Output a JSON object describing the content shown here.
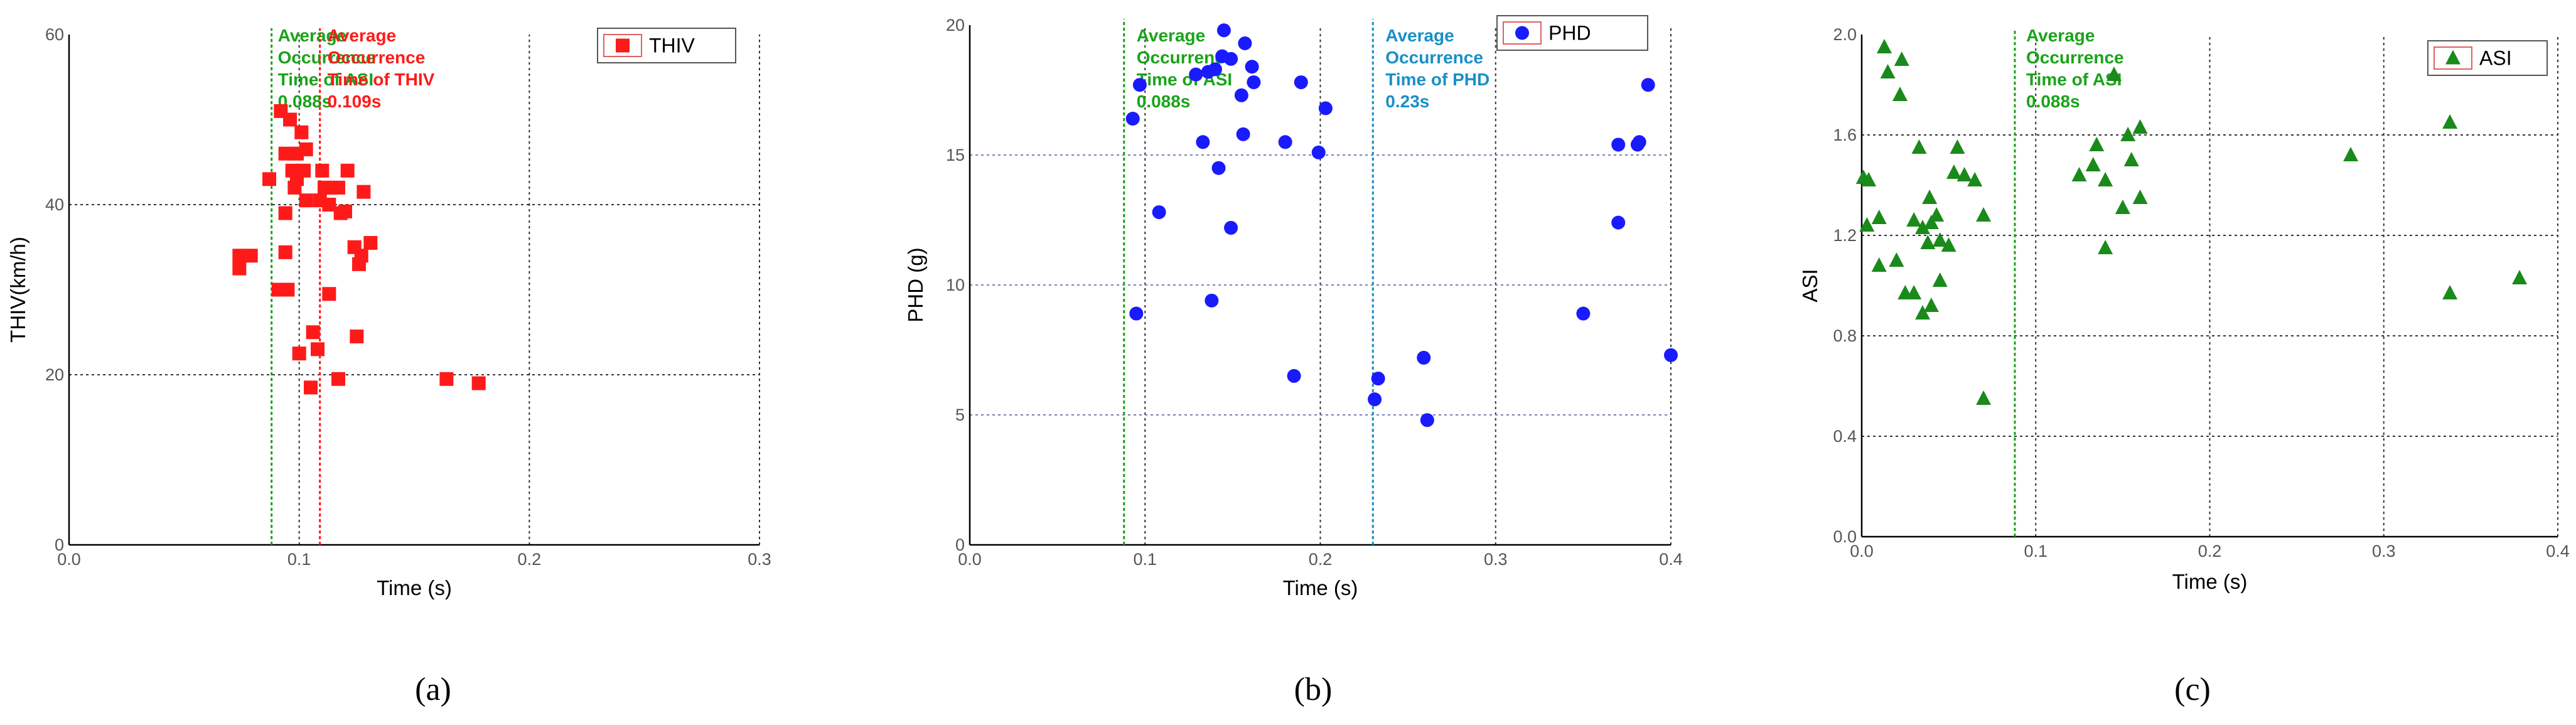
{
  "panel_labels": [
    "(a)",
    "(b)",
    "(c)"
  ],
  "chart_data": [
    {
      "type": "scatter",
      "xlabel": "Time (s)",
      "ylabel": "THIV(km/h)",
      "xlim": [
        0.0,
        0.3
      ],
      "ylim": [
        0,
        60
      ],
      "xticks": [
        "0.0",
        "0.1",
        "0.2",
        "0.3"
      ],
      "yticks": [
        "0",
        "20",
        "40",
        "60"
      ],
      "grid": "dotted at 0.1, 0.2 and 20, 40",
      "legend_position": "top-right",
      "series": [
        {
          "name": "THIV",
          "color": "#ff1a1a",
          "marker": "square",
          "points": [
            [
              0.092,
              51
            ],
            [
              0.096,
              50
            ],
            [
              0.094,
              46
            ],
            [
              0.099,
              46
            ],
            [
              0.103,
              46.5
            ],
            [
              0.101,
              48.5
            ],
            [
              0.097,
              44
            ],
            [
              0.102,
              44
            ],
            [
              0.099,
              43
            ],
            [
              0.087,
              43
            ],
            [
              0.098,
              42
            ],
            [
              0.11,
              44
            ],
            [
              0.111,
              42
            ],
            [
              0.114,
              42
            ],
            [
              0.117,
              42
            ],
            [
              0.121,
              44
            ],
            [
              0.128,
              41.5
            ],
            [
              0.109,
              40.5
            ],
            [
              0.103,
              40.5
            ],
            [
              0.113,
              40
            ],
            [
              0.118,
              39
            ],
            [
              0.12,
              39.2
            ],
            [
              0.094,
              39
            ],
            [
              0.124,
              35
            ],
            [
              0.131,
              35.5
            ],
            [
              0.127,
              34
            ],
            [
              0.094,
              34.4
            ],
            [
              0.126,
              33
            ],
            [
              0.074,
              34
            ],
            [
              0.079,
              34
            ],
            [
              0.074,
              32.5
            ],
            [
              0.091,
              30
            ],
            [
              0.095,
              30
            ],
            [
              0.113,
              29.5
            ],
            [
              0.106,
              25
            ],
            [
              0.125,
              24.5
            ],
            [
              0.108,
              23
            ],
            [
              0.1,
              22.5
            ],
            [
              0.117,
              19.5
            ],
            [
              0.105,
              18.5
            ],
            [
              0.164,
              19.5
            ],
            [
              0.178,
              19
            ]
          ]
        }
      ],
      "annotations": [
        {
          "x": 0.088,
          "lines": [
            "Average",
            "Occurrence",
            "Time of ASI",
            "0.088s"
          ],
          "color": "#1aa31a"
        },
        {
          "x": 0.109,
          "lines": [
            "Average",
            "Occurrence",
            "Time of THIV",
            "0.109s"
          ],
          "color": "#ff1a1a"
        }
      ]
    },
    {
      "type": "scatter",
      "xlabel": "Time (s)",
      "ylabel": "PHD (g)",
      "xlim": [
        0.0,
        0.4
      ],
      "ylim": [
        0,
        20
      ],
      "xticks": [
        "0.0",
        "0.1",
        "0.2",
        "0.3",
        "0.4"
      ],
      "yticks": [
        "0",
        "5",
        "10",
        "15",
        "20"
      ],
      "grid": "dotted at 0.1, 0.2, 0.3 and 5, 10, 15",
      "legend_position": "top-right",
      "series": [
        {
          "name": "PHD",
          "color": "#1a1aff",
          "marker": "circle",
          "points": [
            [
              0.145,
              19.8
            ],
            [
              0.157,
              19.3
            ],
            [
              0.129,
              18.1
            ],
            [
              0.136,
              18.2
            ],
            [
              0.14,
              18.3
            ],
            [
              0.144,
              18.8
            ],
            [
              0.149,
              18.7
            ],
            [
              0.161,
              18.4
            ],
            [
              0.189,
              17.8
            ],
            [
              0.162,
              17.8
            ],
            [
              0.097,
              17.7
            ],
            [
              0.155,
              17.3
            ],
            [
              0.203,
              16.8
            ],
            [
              0.093,
              16.4
            ],
            [
              0.156,
              15.8
            ],
            [
              0.133,
              15.5
            ],
            [
              0.18,
              15.5
            ],
            [
              0.199,
              15.1
            ],
            [
              0.142,
              14.5
            ],
            [
              0.108,
              12.8
            ],
            [
              0.149,
              12.2
            ],
            [
              0.138,
              9.4
            ],
            [
              0.095,
              8.9
            ],
            [
              0.185,
              6.5
            ],
            [
              0.233,
              6.4
            ],
            [
              0.231,
              5.6
            ],
            [
              0.259,
              7.2
            ],
            [
              0.261,
              4.8
            ],
            [
              0.387,
              17.7
            ],
            [
              0.37,
              15.4
            ],
            [
              0.382,
              15.5
            ],
            [
              0.381,
              15.4
            ],
            [
              0.37,
              12.4
            ],
            [
              0.35,
              8.9
            ],
            [
              0.4,
              7.3
            ]
          ]
        }
      ],
      "annotations": [
        {
          "x": 0.088,
          "lines": [
            "Average",
            "Occurrence",
            "Time of ASI",
            "0.088s"
          ],
          "color": "#1aa31a"
        },
        {
          "x": 0.23,
          "lines": [
            "Average",
            "Occurrence",
            "Time of PHD",
            "0.23s"
          ],
          "color": "#1a8fc8"
        }
      ]
    },
    {
      "type": "scatter",
      "xlabel": "Time (s)",
      "ylabel": "ASI",
      "xlim": [
        0.0,
        0.4
      ],
      "ylim": [
        0.0,
        2.0
      ],
      "xticks": [
        "0.0",
        "0.1",
        "0.2",
        "0.3",
        "0.4"
      ],
      "yticks": [
        "0.0",
        "0.4",
        "0.8",
        "1.2",
        "1.6",
        "2.0"
      ],
      "grid": "dotted at 0.1, 0.2, 0.3 and 0.4, 0.8, 1.2, 1.6",
      "legend_position": "top-right",
      "series": [
        {
          "name": "ASI",
          "color": "#1a8a1a",
          "marker": "triangle",
          "points": [
            [
              0.013,
              1.95
            ],
            [
              0.023,
              1.9
            ],
            [
              0.015,
              1.85
            ],
            [
              0.022,
              1.76
            ],
            [
              0.001,
              1.43
            ],
            [
              0.004,
              1.42
            ],
            [
              0.033,
              1.55
            ],
            [
              0.055,
              1.55
            ],
            [
              0.053,
              1.45
            ],
            [
              0.059,
              1.44
            ],
            [
              0.065,
              1.42
            ],
            [
              0.039,
              1.35
            ],
            [
              0.01,
              1.27
            ],
            [
              0.03,
              1.26
            ],
            [
              0.035,
              1.23
            ],
            [
              0.04,
              1.25
            ],
            [
              0.003,
              1.24
            ],
            [
              0.043,
              1.28
            ],
            [
              0.07,
              1.28
            ],
            [
              0.038,
              1.17
            ],
            [
              0.045,
              1.18
            ],
            [
              0.05,
              1.16
            ],
            [
              0.02,
              1.1
            ],
            [
              0.01,
              1.08
            ],
            [
              0.045,
              1.02
            ],
            [
              0.025,
              0.97
            ],
            [
              0.03,
              0.97
            ],
            [
              0.04,
              0.92
            ],
            [
              0.035,
              0.89
            ],
            [
              0.07,
              0.55
            ],
            [
              0.145,
              1.84
            ],
            [
              0.16,
              1.63
            ],
            [
              0.153,
              1.6
            ],
            [
              0.135,
              1.56
            ],
            [
              0.155,
              1.5
            ],
            [
              0.133,
              1.48
            ],
            [
              0.125,
              1.44
            ],
            [
              0.14,
              1.42
            ],
            [
              0.16,
              1.35
            ],
            [
              0.15,
              1.31
            ],
            [
              0.14,
              1.15
            ],
            [
              0.281,
              1.52
            ],
            [
              0.338,
              1.65
            ],
            [
              0.378,
              1.03
            ],
            [
              0.338,
              0.97
            ]
          ]
        }
      ],
      "annotations": [
        {
          "x": 0.088,
          "lines": [
            "Average",
            "Occurrence",
            "Time of ASI",
            "0.088s"
          ],
          "color": "#1aa31a"
        }
      ]
    }
  ]
}
